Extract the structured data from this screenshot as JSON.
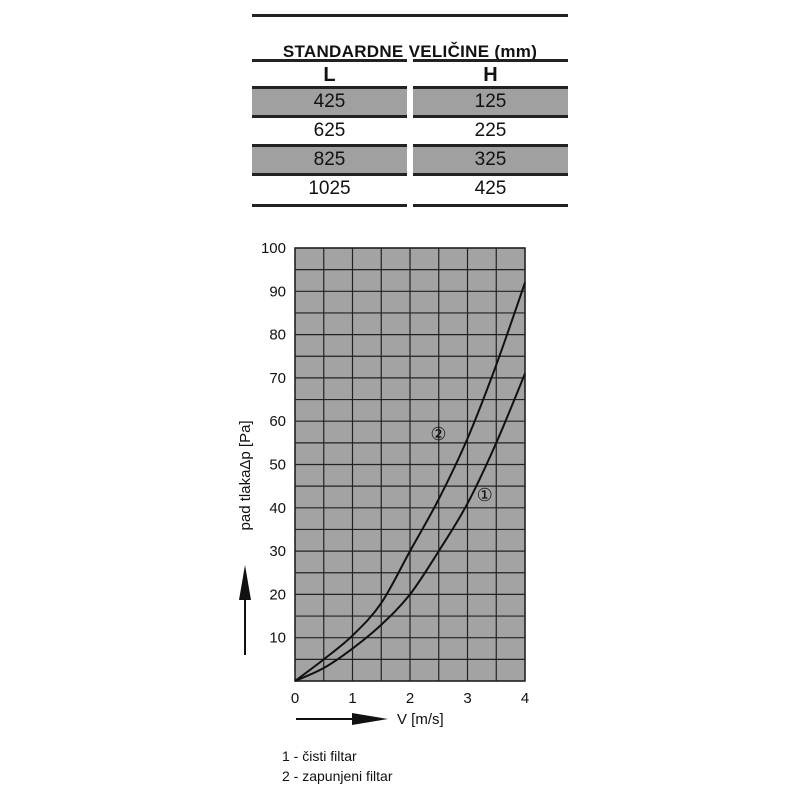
{
  "table": {
    "title": "STANDARDNE  VELIČINE  (mm)",
    "headers": [
      "L",
      "H"
    ],
    "rows": [
      [
        "425",
        "125"
      ],
      [
        "625",
        "225"
      ],
      [
        "825",
        "325"
      ],
      [
        "1025",
        "425"
      ]
    ]
  },
  "chart_data": {
    "type": "line",
    "xlabel": "V  [m/s]",
    "ylabel": "Δp [Pa]",
    "ylabel2": "pad tlaka",
    "xlim": [
      0,
      4
    ],
    "ylim": [
      0,
      100
    ],
    "xticks": [
      "0",
      "1",
      "2",
      "3",
      "4"
    ],
    "yticks": [
      "10",
      "20",
      "30",
      "40",
      "50",
      "60",
      "70",
      "80",
      "90",
      "100"
    ],
    "grid": true,
    "plot_bg": "#a3a3a3",
    "x": [
      0,
      0.5,
      1,
      1.5,
      2,
      2.5,
      3,
      3.5,
      4
    ],
    "series": [
      {
        "name": "1",
        "marker": "①",
        "values": [
          0,
          3,
          7.5,
          13,
          20,
          30,
          41,
          55,
          71
        ]
      },
      {
        "name": "2",
        "marker": "②",
        "values": [
          0,
          5,
          10.5,
          18,
          30,
          42,
          56,
          73,
          92
        ]
      }
    ],
    "legend": [
      "1 - čisti filtar",
      "2 - zapunjeni filtar"
    ]
  }
}
